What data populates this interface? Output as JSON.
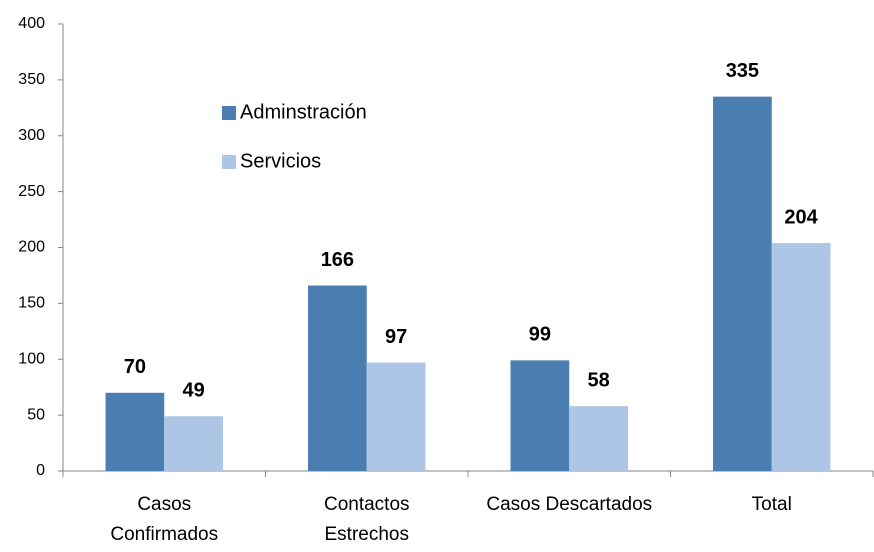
{
  "chart_data": {
    "type": "bar",
    "categories": [
      "Casos\nConfirmados",
      "Contactos\nEstrechos",
      "Casos Descartados",
      "Total"
    ],
    "series": [
      {
        "name": "Adminstración",
        "color": "#4a7eb1",
        "values": [
          70,
          166,
          99,
          335
        ]
      },
      {
        "name": "Servicios",
        "color": "#adc6e6",
        "values": [
          49,
          97,
          58,
          204
        ]
      }
    ],
    "ylim": [
      0,
      400
    ],
    "yticks": [
      0,
      50,
      100,
      150,
      200,
      250,
      300,
      350,
      400
    ],
    "grid": false,
    "legend": "upper-left"
  }
}
